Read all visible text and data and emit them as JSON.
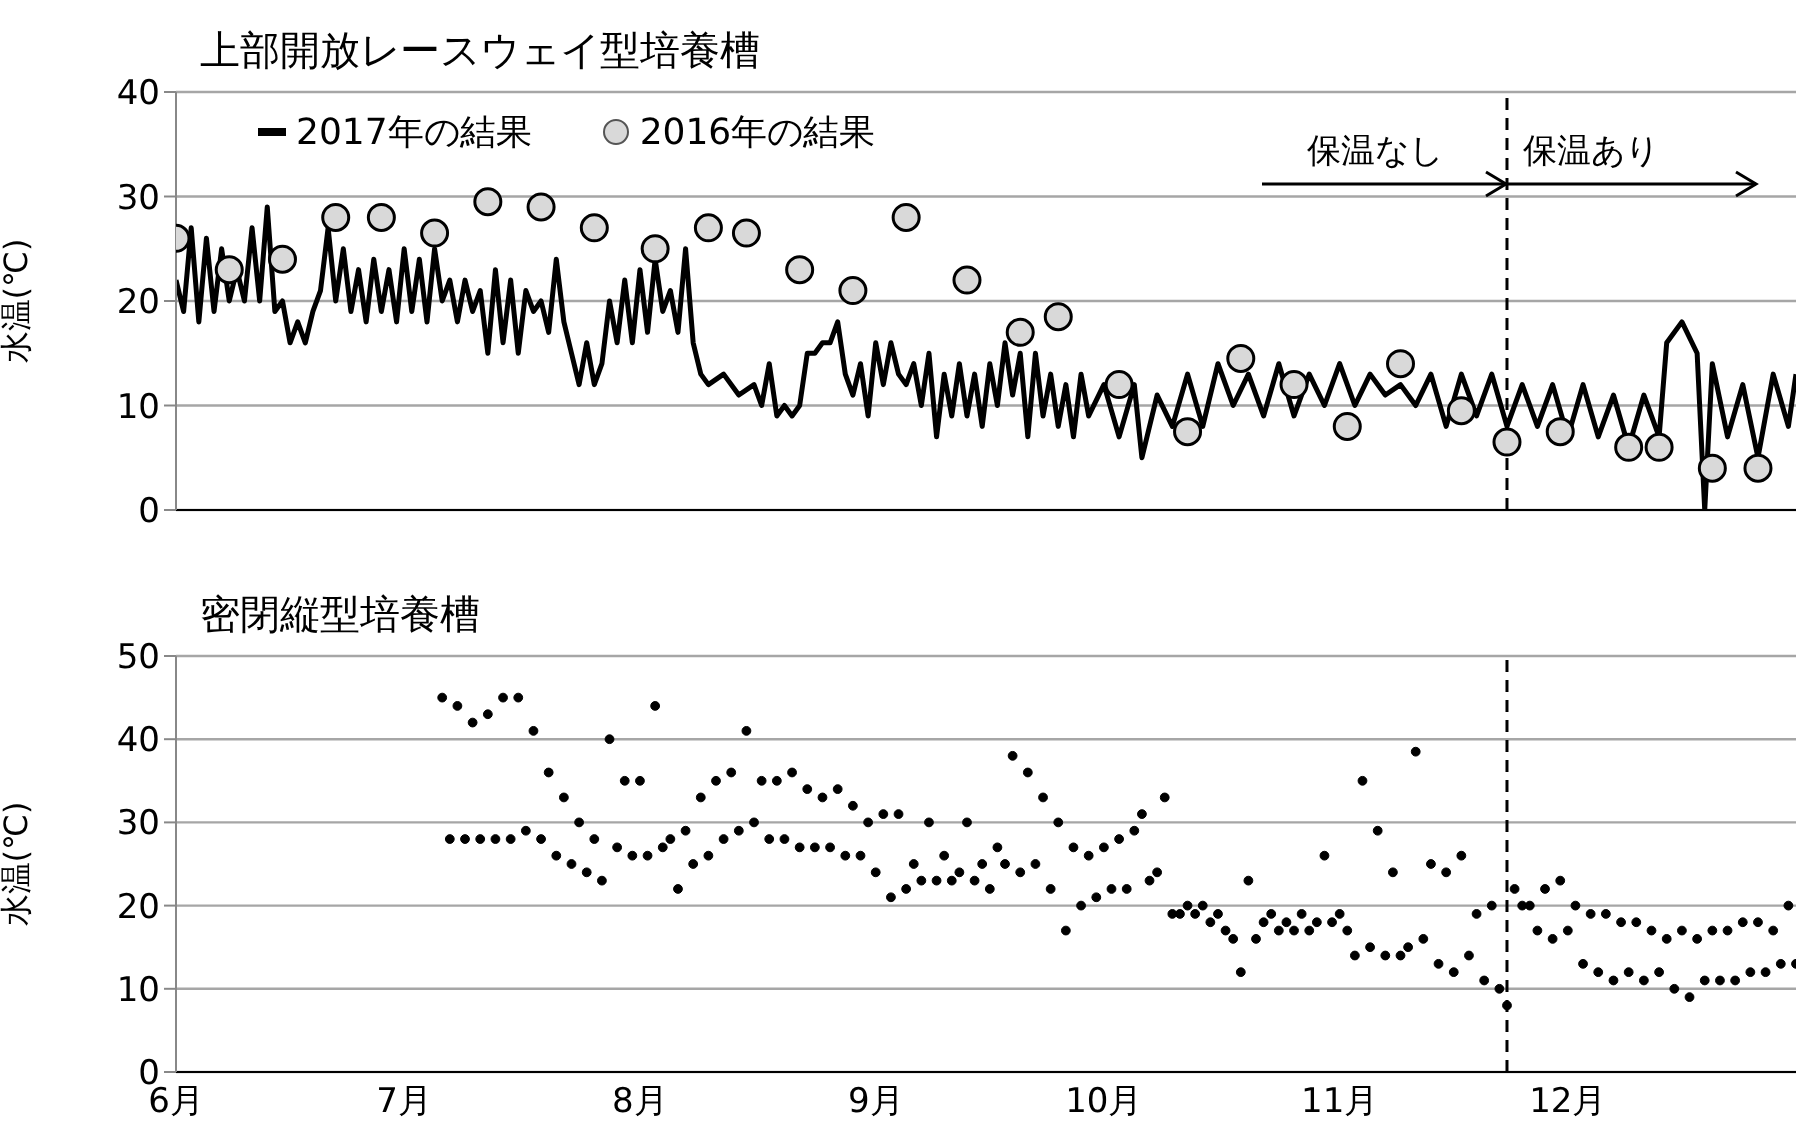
{
  "chart_data": [
    {
      "type": "line",
      "title": "上部開放レースウェイ型培養槽",
      "ylabel": "水温(℃)",
      "xlim": [
        "--06-01",
        "--12-31"
      ],
      "xticks": [
        {
          "value": "--06-01",
          "label": "6月"
        },
        {
          "value": "--07-01",
          "label": "7月"
        },
        {
          "value": "--08-01",
          "label": "8月"
        },
        {
          "value": "--09-01",
          "label": "9月"
        },
        {
          "value": "--10-01",
          "label": "10月"
        },
        {
          "value": "--11-01",
          "label": "11月"
        },
        {
          "value": "--12-01",
          "label": "12月"
        }
      ],
      "ylim": [
        0,
        40
      ],
      "yticks": [
        0,
        10,
        20,
        30,
        40
      ],
      "grid": "y",
      "legend": "top left",
      "tick_labels": "y",
      "ref_lines": [
        {
          "axis": "x",
          "value": "--11-23",
          "line_style": "dashed",
          "color": "#000000"
        }
      ],
      "annotations": [
        "保温なし",
        "保温あり"
      ],
      "series": [
        {
          "name": "2017年の結果",
          "color": "#000000",
          "x": [
            "--06-01",
            "--06-02",
            "--06-03",
            "--06-04",
            "--06-05",
            "--06-06",
            "--06-07",
            "--06-08",
            "--06-09",
            "--06-10",
            "--06-11",
            "--06-12",
            "--06-13",
            "--06-14",
            "--06-15",
            "--06-16",
            "--06-17",
            "--06-18",
            "--06-19",
            "--06-20",
            "--06-21",
            "--06-22",
            "--06-23",
            "--06-24",
            "--06-25",
            "--06-26",
            "--06-27",
            "--06-28",
            "--06-29",
            "--06-30",
            "--07-01",
            "--07-02",
            "--07-03",
            "--07-04",
            "--07-05",
            "--07-06",
            "--07-07",
            "--07-08",
            "--07-09",
            "--07-10",
            "--07-11",
            "--07-12",
            "--07-13",
            "--07-14",
            "--07-15",
            "--07-16",
            "--07-17",
            "--07-18",
            "--07-19",
            "--07-20",
            "--07-21",
            "--07-22",
            "--07-23",
            "--07-24",
            "--07-25",
            "--07-26",
            "--07-27",
            "--07-28",
            "--07-29",
            "--07-30",
            "--07-31",
            "--08-01",
            "--08-02",
            "--08-03",
            "--08-04",
            "--08-05",
            "--08-06",
            "--08-07",
            "--08-08",
            "--08-09",
            "--08-10",
            "--08-12",
            "--08-14",
            "--08-16",
            "--08-17",
            "--08-18",
            "--08-19",
            "--08-20",
            "--08-21",
            "--08-22",
            "--08-23",
            "--08-24",
            "--08-25",
            "--08-26",
            "--08-27",
            "--08-28",
            "--08-29",
            "--08-30",
            "--08-31",
            "--09-01",
            "--09-02",
            "--09-03",
            "--09-04",
            "--09-05",
            "--09-06",
            "--09-07",
            "--09-08",
            "--09-09",
            "--09-10",
            "--09-11",
            "--09-12",
            "--09-13",
            "--09-14",
            "--09-15",
            "--09-16",
            "--09-17",
            "--09-18",
            "--09-19",
            "--09-20",
            "--09-21",
            "--09-22",
            "--09-23",
            "--09-24",
            "--09-25",
            "--09-26",
            "--09-27",
            "--09-28",
            "--09-29",
            "--10-01",
            "--10-03",
            "--10-05",
            "--10-06",
            "--10-08",
            "--10-10",
            "--10-12",
            "--10-14",
            "--10-16",
            "--10-18",
            "--10-20",
            "--10-22",
            "--10-24",
            "--10-26",
            "--10-28",
            "--10-30",
            "--11-01",
            "--11-03",
            "--11-05",
            "--11-07",
            "--11-09",
            "--11-11",
            "--11-13",
            "--11-15",
            "--11-17",
            "--11-19",
            "--11-21",
            "--11-23",
            "--11-25",
            "--11-27",
            "--11-29",
            "--12-01",
            "--12-03",
            "--12-05",
            "--12-07",
            "--12-09",
            "--12-11",
            "--12-13",
            "--12-14",
            "--12-16",
            "--12-18",
            "--12-19",
            "--12-20",
            "--12-22",
            "--12-24",
            "--12-26",
            "--12-28",
            "--12-30",
            "--12-31"
          ],
          "values": [
            22,
            19,
            27,
            18,
            26,
            19,
            25,
            20,
            23,
            20,
            27,
            20,
            29,
            19,
            20,
            16,
            18,
            16,
            19,
            21,
            27,
            20,
            25,
            19,
            23,
            18,
            24,
            19,
            23,
            18,
            25,
            19,
            24,
            18,
            25,
            20,
            22,
            18,
            22,
            19,
            21,
            15,
            23,
            16,
            22,
            15,
            21,
            19,
            20,
            17,
            24,
            18,
            15,
            12,
            16,
            12,
            14,
            20,
            16,
            22,
            16,
            23,
            17,
            24,
            19,
            21,
            17,
            25,
            16,
            13,
            12,
            13,
            11,
            12,
            10,
            14,
            9,
            10,
            9,
            10,
            15,
            15,
            16,
            16,
            18,
            13,
            11,
            14,
            9,
            16,
            12,
            16,
            13,
            12,
            14,
            10,
            15,
            7,
            13,
            9,
            14,
            9,
            13,
            8,
            14,
            10,
            16,
            11,
            15,
            7,
            15,
            9,
            13,
            8,
            12,
            7,
            13,
            9,
            12,
            7,
            12,
            5,
            11,
            8,
            13,
            8,
            14,
            10,
            13,
            9,
            14,
            9,
            13,
            10,
            14,
            10,
            13,
            11,
            12,
            10,
            13,
            8,
            13,
            9,
            13,
            8,
            12,
            8,
            12,
            7,
            12,
            7,
            11,
            6,
            11,
            7,
            16,
            18,
            15,
            0,
            14,
            7,
            12,
            5,
            13,
            8,
            13
          ]
        },
        {
          "name": "2016年の結果",
          "type": "scatter",
          "marker": "circle",
          "color": "#d9d9d9",
          "x": [
            "--06-01",
            "--06-08",
            "--06-15",
            "--06-22",
            "--06-28",
            "--07-05",
            "--07-12",
            "--07-19",
            "--07-26",
            "--08-03",
            "--08-10",
            "--08-15",
            "--08-22",
            "--08-29",
            "--09-05",
            "--09-13",
            "--09-20",
            "--09-25",
            "--10-03",
            "--10-12",
            "--10-19",
            "--10-26",
            "--11-02",
            "--11-09",
            "--11-17",
            "--11-23",
            "--11-30",
            "--12-09",
            "--12-13",
            "--12-20",
            "--12-26"
          ],
          "values": [
            26,
            23,
            24,
            28,
            28,
            26.5,
            29.5,
            29,
            27,
            25,
            27,
            26.5,
            23,
            21,
            28,
            22,
            17,
            18.5,
            12,
            7.5,
            14.5,
            12,
            8,
            14,
            9.5,
            6.5,
            7.5,
            6,
            6,
            4,
            4
          ]
        }
      ]
    },
    {
      "type": "scatter",
      "title": "密閉縦型培養槽",
      "ylabel": "水温(℃)",
      "xlim": [
        "--06-01",
        "--12-31"
      ],
      "xticks": [
        {
          "value": "--06-01",
          "label": "6月"
        },
        {
          "value": "--07-01",
          "label": "7月"
        },
        {
          "value": "--08-01",
          "label": "8月"
        },
        {
          "value": "--09-01",
          "label": "9月"
        },
        {
          "value": "--10-01",
          "label": "10月"
        },
        {
          "value": "--11-01",
          "label": "11月"
        },
        {
          "value": "--12-01",
          "label": "12月"
        }
      ],
      "ylim": [
        0,
        50
      ],
      "yticks": [
        0,
        10,
        20,
        30,
        40,
        50
      ],
      "grid": "y",
      "ref_lines": [
        {
          "axis": "x",
          "value": "--11-23",
          "line_style": "dashed",
          "color": "#000000"
        }
      ],
      "series": [
        {
          "marker": "circle",
          "color": "#000000",
          "x": [
            "--07-06",
            "--07-07",
            "--07-08",
            "--07-09",
            "--07-10",
            "--07-11",
            "--07-12",
            "--07-13",
            "--07-14",
            "--07-15",
            "--07-16",
            "--07-17",
            "--07-18",
            "--07-19",
            "--07-20",
            "--07-21",
            "--07-22",
            "--07-23",
            "--07-24",
            "--07-25",
            "--07-26",
            "--07-27",
            "--07-28",
            "--07-29",
            "--07-30",
            "--07-31",
            "--08-01",
            "--08-02",
            "--08-03",
            "--08-04",
            "--08-05",
            "--08-06",
            "--08-07",
            "--08-08",
            "--08-09",
            "--08-10",
            "--08-11",
            "--08-12",
            "--08-13",
            "--08-14",
            "--08-15",
            "--08-16",
            "--08-17",
            "--08-18",
            "--08-19",
            "--08-20",
            "--08-21",
            "--08-22",
            "--08-23",
            "--08-24",
            "--08-25",
            "--08-26",
            "--08-27",
            "--08-28",
            "--08-29",
            "--08-30",
            "--08-31",
            "--09-01",
            "--09-02",
            "--09-03",
            "--09-04",
            "--09-05",
            "--09-06",
            "--09-07",
            "--09-08",
            "--09-09",
            "--09-10",
            "--09-11",
            "--09-12",
            "--09-13",
            "--09-14",
            "--09-15",
            "--09-16",
            "--09-17",
            "--09-18",
            "--09-19",
            "--09-20",
            "--09-21",
            "--09-22",
            "--09-23",
            "--09-24",
            "--09-25",
            "--09-26",
            "--09-27",
            "--09-28",
            "--09-29",
            "--09-30",
            "--10-01",
            "--10-02",
            "--10-03",
            "--10-04",
            "--10-05",
            "--10-06",
            "--10-07",
            "--10-08",
            "--10-09",
            "--10-10",
            "--10-11",
            "--10-12",
            "--10-13",
            "--10-14",
            "--10-15",
            "--10-16",
            "--10-17",
            "--10-18",
            "--10-19",
            "--10-20",
            "--10-21",
            "--10-22",
            "--10-23",
            "--10-24",
            "--10-25",
            "--10-26",
            "--10-27",
            "--10-28",
            "--10-29",
            "--10-30",
            "--10-31",
            "--11-01",
            "--11-02",
            "--11-03",
            "--11-04",
            "--11-05",
            "--11-06",
            "--11-07",
            "--11-08",
            "--11-09",
            "--11-10",
            "--11-11",
            "--11-12",
            "--11-13",
            "--11-14",
            "--11-15",
            "--11-16",
            "--11-17",
            "--11-18",
            "--11-19",
            "--11-20",
            "--11-21",
            "--11-22",
            "--11-23",
            "--11-24",
            "--11-25",
            "--11-26",
            "--11-27",
            "--11-28",
            "--11-29",
            "--11-30",
            "--12-01",
            "--12-02",
            "--12-03",
            "--12-04",
            "--12-05",
            "--12-06",
            "--12-07",
            "--12-08",
            "--12-09",
            "--12-10",
            "--12-11",
            "--12-12",
            "--12-13",
            "--12-14",
            "--12-15",
            "--12-16",
            "--12-17",
            "--12-18",
            "--12-19",
            "--12-20",
            "--12-21",
            "--12-22",
            "--12-23",
            "--12-24",
            "--12-25",
            "--12-26",
            "--12-27",
            "--12-28",
            "--12-29",
            "--12-30",
            "--12-31"
          ],
          "values": [
            45,
            28,
            44,
            28,
            42,
            28,
            43,
            28,
            45,
            28,
            45,
            29,
            41,
            28,
            36,
            26,
            33,
            25,
            30,
            24,
            28,
            23,
            40,
            27,
            35,
            26,
            35,
            26,
            44,
            27,
            28,
            22,
            29,
            25,
            33,
            26,
            35,
            28,
            36,
            29,
            41,
            30,
            35,
            28,
            35,
            28,
            36,
            27,
            34,
            27,
            33,
            27,
            34,
            26,
            32,
            26,
            30,
            24,
            31,
            21,
            31,
            22,
            25,
            23,
            30,
            23,
            26,
            23,
            24,
            30,
            23,
            25,
            22,
            27,
            25,
            38,
            24,
            36,
            25,
            33,
            22,
            30,
            17,
            27,
            20,
            26,
            21,
            27,
            22,
            28,
            22,
            29,
            31,
            23,
            24,
            33,
            19,
            19,
            20,
            19,
            20,
            18,
            19,
            17,
            16,
            12,
            23,
            16,
            18,
            19,
            17,
            18,
            17,
            19,
            17,
            18,
            26,
            18,
            19,
            17,
            14,
            35,
            15,
            29,
            14,
            24,
            14,
            15,
            38.5,
            16,
            25,
            13,
            24,
            12,
            26,
            14,
            19,
            11,
            20,
            10,
            8,
            22,
            20,
            20,
            17,
            22,
            16,
            23,
            17,
            20,
            13,
            19,
            12,
            19,
            11,
            18,
            12,
            18,
            11,
            17,
            12,
            16,
            10,
            17,
            9,
            16,
            11,
            17,
            11,
            17,
            11,
            18,
            12,
            18,
            12,
            17,
            13,
            20,
            13
          ]
        }
      ]
    }
  ]
}
